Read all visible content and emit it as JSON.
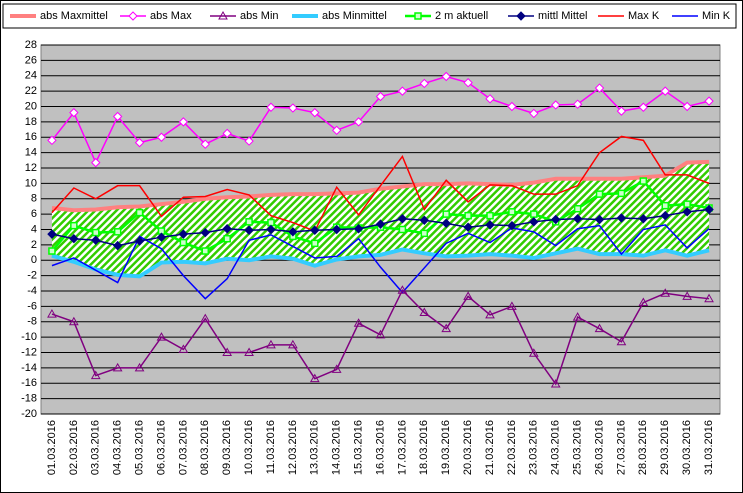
{
  "chart_data": {
    "type": "line",
    "categories": [
      "01.03.2016",
      "02.03.2016",
      "03.03.2016",
      "04.03.2016",
      "05.03.2016",
      "06.03.2016",
      "07.03.2016",
      "08.03.2016",
      "09.03.2016",
      "10.03.2016",
      "11.03.2016",
      "12.03.2016",
      "13.03.2016",
      "14.03.2016",
      "15.03.2016",
      "16.03.2016",
      "17.03.2016",
      "18.03.2016",
      "19.03.2016",
      "20.03.2016",
      "21.03.2016",
      "22.03.2016",
      "23.03.2016",
      "24.03.2016",
      "25.03.2016",
      "26.03.2016",
      "27.03.2016",
      "28.03.2016",
      "29.03.2016",
      "30.03.2016",
      "31.03.2016"
    ],
    "ylim": [
      -20,
      28
    ],
    "yticks": [
      -20,
      -18,
      -16,
      -14,
      -12,
      -10,
      -8,
      -6,
      -4,
      -2,
      0,
      2,
      4,
      6,
      8,
      10,
      12,
      14,
      16,
      18,
      20,
      22,
      24,
      26,
      28
    ],
    "grid": true,
    "band_color": "#33cc00",
    "series": [
      {
        "name": "abs Maxmittel",
        "color": "#ff8080",
        "marker": "none",
        "values": [
          6.8,
          6.5,
          6.6,
          6.9,
          7.0,
          7.3,
          7.6,
          8.0,
          8.2,
          8.3,
          8.5,
          8.6,
          8.6,
          8.7,
          8.8,
          9.3,
          9.6,
          9.9,
          9.9,
          10.0,
          9.9,
          9.8,
          10.1,
          10.6,
          10.6,
          10.6,
          10.6,
          10.8,
          11.0,
          12.7,
          12.8
        ]
      },
      {
        "name": "abs Max",
        "color": "#ff00ff",
        "marker": "diamond-open",
        "values": [
          15.6,
          19.2,
          12.7,
          18.7,
          15.3,
          16.0,
          18.0,
          15.1,
          16.5,
          15.5,
          19.9,
          19.8,
          19.2,
          16.9,
          18.0,
          21.3,
          22.0,
          23.0,
          23.9,
          23.1,
          21.0,
          20.0,
          19.1,
          20.2,
          20.3,
          22.4,
          19.4,
          19.9,
          22.0,
          20.0,
          20.7
        ]
      },
      {
        "name": "abs Min",
        "color": "#800080",
        "marker": "triangle",
        "values": [
          -7.0,
          -8.0,
          -15.0,
          -14.0,
          -14.0,
          -10.0,
          -11.6,
          -7.6,
          -12.0,
          -12.0,
          -11.0,
          -11.0,
          -15.4,
          -14.2,
          -8.2,
          -9.7,
          -3.9,
          -6.8,
          -8.9,
          -4.7,
          -7.1,
          -6.0,
          -12.1,
          -16.1,
          -7.4,
          -8.9,
          -10.6,
          -5.5,
          -4.3,
          -4.7,
          -5.0
        ]
      },
      {
        "name": "abs Minmittel",
        "color": "#33ccff",
        "marker": "none",
        "values": [
          0.6,
          -0.2,
          -1.2,
          -1.9,
          -2.1,
          -0.3,
          -0.2,
          -0.4,
          0.2,
          0.0,
          0.5,
          0.2,
          -0.7,
          0.1,
          0.5,
          0.7,
          1.4,
          0.9,
          0.5,
          0.6,
          0.8,
          0.6,
          0.3,
          0.9,
          1.5,
          0.8,
          0.8,
          0.6,
          1.3,
          0.6,
          1.3
        ]
      },
      {
        "name": "2 m aktuell",
        "color": "#00ff00",
        "marker": "square",
        "values": [
          1.2,
          4.5,
          3.6,
          3.7,
          6.2,
          3.8,
          2.3,
          1.2,
          2.8,
          5.0,
          4.9,
          3.1,
          2.2,
          4.3,
          4.2,
          4.3,
          4.0,
          3.5,
          6.0,
          5.8,
          5.8,
          6.3,
          6.0,
          5.0,
          6.7,
          8.6,
          8.7,
          10.3,
          7.1,
          7.3,
          6.8
        ]
      },
      {
        "name": "mittl Mittel",
        "color": "#000080",
        "marker": "diamond",
        "values": [
          3.4,
          2.8,
          2.6,
          1.9,
          2.5,
          3.0,
          3.4,
          3.6,
          4.1,
          3.9,
          4.0,
          3.7,
          3.9,
          4.0,
          4.1,
          4.7,
          5.4,
          5.2,
          4.8,
          4.3,
          4.6,
          4.5,
          5.0,
          5.3,
          5.4,
          5.3,
          5.5,
          5.4,
          5.8,
          6.3,
          6.6
        ]
      },
      {
        "name": "Max K",
        "color": "#ff0000",
        "marker": "none",
        "values": [
          6.2,
          9.4,
          8.0,
          9.7,
          9.7,
          5.7,
          8.2,
          8.3,
          9.2,
          8.5,
          5.8,
          4.9,
          3.8,
          9.5,
          5.9,
          9.7,
          13.5,
          6.6,
          10.4,
          7.6,
          9.8,
          9.7,
          8.6,
          8.6,
          9.7,
          14.0,
          16.1,
          15.6,
          11.1,
          11.1,
          10.0
        ]
      },
      {
        "name": "Min K",
        "color": "#0000ff",
        "marker": "none",
        "values": [
          -0.7,
          0.3,
          -1.3,
          -2.9,
          3.1,
          1.5,
          -2.0,
          -5.0,
          -2.4,
          2.6,
          3.3,
          1.8,
          0.3,
          0.5,
          2.8,
          -0.9,
          -4.2,
          -1.0,
          2.2,
          3.5,
          2.3,
          4.2,
          3.7,
          1.9,
          4.1,
          4.5,
          0.8,
          4.0,
          4.6,
          1.6,
          4.1
        ]
      }
    ]
  }
}
